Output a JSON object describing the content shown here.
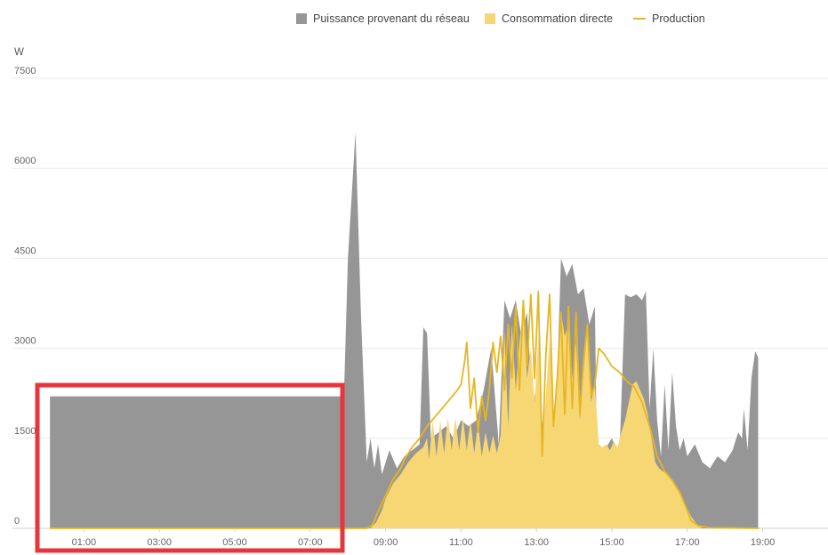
{
  "colors": {
    "grid_power": "#969696",
    "direct_consumption": "#f7d774",
    "production": "#e6b622",
    "highlight_box": "#e8343b"
  },
  "legend": [
    {
      "label": "Puissance provenant du réseau",
      "kind": "box",
      "color": "#969696"
    },
    {
      "label": "Consommation directe",
      "kind": "box",
      "color": "#f7d774"
    },
    {
      "label": "Production",
      "kind": "line",
      "color": "#e6b622"
    }
  ],
  "chart_data": {
    "type": "area",
    "ylabel": "W",
    "ylim": [
      0,
      7500
    ],
    "y_ticks": [
      0,
      1500,
      3000,
      4500,
      6000,
      7500
    ],
    "x_range_hours": [
      0,
      20
    ],
    "x_tick_labels": [
      "01:00",
      "03:00",
      "05:00",
      "07:00",
      "09:00",
      "11:00",
      "13:00",
      "15:00",
      "17:00",
      "19:00"
    ],
    "x_tick_hours": [
      1,
      3,
      5,
      7,
      9,
      11,
      13,
      15,
      17,
      19
    ],
    "grid": true,
    "legend_position": "top",
    "series": [
      {
        "name": "Puissance provenant du réseau",
        "kind": "area",
        "points": [
          [
            0.1,
            2200
          ],
          [
            7.8,
            2200
          ],
          [
            7.85,
            1200
          ],
          [
            8.0,
            4500
          ],
          [
            8.2,
            6600
          ],
          [
            8.35,
            3500
          ],
          [
            8.5,
            1100
          ],
          [
            8.6,
            1500
          ],
          [
            8.7,
            1000
          ],
          [
            8.8,
            1400
          ],
          [
            8.9,
            900
          ],
          [
            9.1,
            1300
          ],
          [
            9.3,
            1000
          ],
          [
            9.5,
            1200
          ],
          [
            9.7,
            1300
          ],
          [
            9.9,
            1400
          ],
          [
            10.0,
            3350
          ],
          [
            10.1,
            3250
          ],
          [
            10.2,
            1500
          ],
          [
            10.4,
            1600
          ],
          [
            10.6,
            1700
          ],
          [
            10.8,
            1500
          ],
          [
            11.0,
            1800
          ],
          [
            11.2,
            1700
          ],
          [
            11.4,
            1800
          ],
          [
            11.6,
            2300
          ],
          [
            11.8,
            3000
          ],
          [
            12.0,
            1400
          ],
          [
            12.15,
            3800
          ],
          [
            12.3,
            3500
          ],
          [
            12.45,
            3800
          ],
          [
            12.6,
            3200
          ],
          [
            12.75,
            3600
          ],
          [
            12.9,
            2000
          ],
          [
            13.05,
            2600
          ],
          [
            13.2,
            1400
          ],
          [
            13.35,
            2800
          ],
          [
            13.5,
            1600
          ],
          [
            13.65,
            4500
          ],
          [
            13.8,
            4200
          ],
          [
            13.95,
            4400
          ],
          [
            14.1,
            3900
          ],
          [
            14.25,
            4000
          ],
          [
            14.4,
            3400
          ],
          [
            14.55,
            3700
          ],
          [
            14.6,
            1400
          ],
          [
            14.8,
            1300
          ],
          [
            15.0,
            1500
          ],
          [
            15.2,
            1200
          ],
          [
            15.35,
            3900
          ],
          [
            15.5,
            3850
          ],
          [
            15.65,
            3900
          ],
          [
            15.8,
            3800
          ],
          [
            15.9,
            3950
          ],
          [
            16.0,
            2000
          ],
          [
            16.1,
            3000
          ],
          [
            16.2,
            1800
          ],
          [
            16.3,
            1200
          ],
          [
            16.4,
            2400
          ],
          [
            16.5,
            1300
          ],
          [
            16.6,
            2600
          ],
          [
            16.7,
            1700
          ],
          [
            16.8,
            1300
          ],
          [
            16.9,
            1500
          ],
          [
            17.0,
            1200
          ],
          [
            17.2,
            1400
          ],
          [
            17.4,
            1100
          ],
          [
            17.6,
            1000
          ],
          [
            17.8,
            1200
          ],
          [
            18.0,
            1100
          ],
          [
            18.2,
            1300
          ],
          [
            18.35,
            1600
          ],
          [
            18.45,
            1500
          ],
          [
            18.5,
            2000
          ],
          [
            18.6,
            1300
          ],
          [
            18.7,
            2500
          ],
          [
            18.8,
            2950
          ],
          [
            18.88,
            2850
          ]
        ]
      },
      {
        "name": "Consommation directe",
        "kind": "area",
        "points": [
          [
            8.6,
            0
          ],
          [
            8.75,
            100
          ],
          [
            8.9,
            300
          ],
          [
            9.0,
            500
          ],
          [
            9.2,
            750
          ],
          [
            9.4,
            900
          ],
          [
            9.5,
            1000
          ],
          [
            9.6,
            1100
          ],
          [
            9.8,
            1250
          ],
          [
            9.9,
            1300
          ],
          [
            10.0,
            1350
          ],
          [
            10.1,
            1500
          ],
          [
            10.15,
            1150
          ],
          [
            10.25,
            1800
          ],
          [
            10.35,
            1200
          ],
          [
            10.45,
            1800
          ],
          [
            10.55,
            1250
          ],
          [
            10.65,
            1850
          ],
          [
            10.75,
            1300
          ],
          [
            10.85,
            1850
          ],
          [
            10.95,
            1300
          ],
          [
            11.05,
            1850
          ],
          [
            11.15,
            1300
          ],
          [
            11.25,
            1800
          ],
          [
            11.35,
            1250
          ],
          [
            11.45,
            1750
          ],
          [
            11.55,
            1200
          ],
          [
            11.65,
            1600
          ],
          [
            11.75,
            1250
          ],
          [
            11.85,
            1550
          ],
          [
            11.95,
            1250
          ],
          [
            12.05,
            1550
          ],
          [
            12.15,
            3300
          ],
          [
            12.25,
            1700
          ],
          [
            12.35,
            3400
          ],
          [
            12.45,
            2300
          ],
          [
            12.55,
            3100
          ],
          [
            12.65,
            3700
          ],
          [
            12.75,
            2500
          ],
          [
            12.85,
            3000
          ],
          [
            12.95,
            2100
          ],
          [
            13.05,
            3200
          ],
          [
            13.15,
            1400
          ],
          [
            13.25,
            2200
          ],
          [
            13.35,
            3200
          ],
          [
            13.45,
            1900
          ],
          [
            13.55,
            2500
          ],
          [
            13.65,
            3600
          ],
          [
            13.75,
            3200
          ],
          [
            13.85,
            3400
          ],
          [
            13.95,
            2500
          ],
          [
            14.05,
            3100
          ],
          [
            14.15,
            1800
          ],
          [
            14.25,
            2600
          ],
          [
            14.35,
            3400
          ],
          [
            14.45,
            2100
          ],
          [
            14.55,
            2400
          ],
          [
            14.65,
            1400
          ],
          [
            14.75,
            1350
          ],
          [
            14.85,
            1400
          ],
          [
            14.95,
            1300
          ],
          [
            15.05,
            1450
          ],
          [
            15.15,
            1350
          ],
          [
            15.25,
            1600
          ],
          [
            15.35,
            1800
          ],
          [
            15.45,
            2100
          ],
          [
            15.55,
            2400
          ],
          [
            15.65,
            2450
          ],
          [
            15.75,
            2300
          ],
          [
            15.85,
            2150
          ],
          [
            15.95,
            1900
          ],
          [
            16.05,
            1500
          ],
          [
            16.15,
            1100
          ],
          [
            16.25,
            1000
          ],
          [
            16.35,
            950
          ],
          [
            16.5,
            900
          ],
          [
            16.7,
            700
          ],
          [
            16.9,
            450
          ],
          [
            17.1,
            200
          ],
          [
            17.25,
            70
          ],
          [
            17.4,
            0
          ]
        ]
      },
      {
        "name": "Production",
        "kind": "line",
        "points": [
          [
            0.1,
            0
          ],
          [
            8.5,
            0
          ],
          [
            8.65,
            50
          ],
          [
            8.8,
            280
          ],
          [
            9.0,
            550
          ],
          [
            9.2,
            820
          ],
          [
            9.4,
            1000
          ],
          [
            9.5,
            1150
          ],
          [
            9.7,
            1350
          ],
          [
            9.9,
            1500
          ],
          [
            10.1,
            1700
          ],
          [
            10.3,
            1850
          ],
          [
            10.5,
            2000
          ],
          [
            10.7,
            2150
          ],
          [
            10.9,
            2300
          ],
          [
            11.0,
            2400
          ],
          [
            11.1,
            2800
          ],
          [
            11.15,
            3100
          ],
          [
            11.25,
            2000
          ],
          [
            11.35,
            2500
          ],
          [
            11.45,
            1600
          ],
          [
            11.55,
            2200
          ],
          [
            11.65,
            1800
          ],
          [
            11.75,
            2300
          ],
          [
            11.85,
            3100
          ],
          [
            11.95,
            2600
          ],
          [
            12.05,
            3200
          ],
          [
            12.15,
            2300
          ],
          [
            12.25,
            3400
          ],
          [
            12.35,
            2500
          ],
          [
            12.45,
            3700
          ],
          [
            12.55,
            2300
          ],
          [
            12.65,
            3800
          ],
          [
            12.75,
            2700
          ],
          [
            12.85,
            3900
          ],
          [
            12.95,
            2500
          ],
          [
            13.05,
            3950
          ],
          [
            13.15,
            1200
          ],
          [
            13.25,
            2900
          ],
          [
            13.35,
            3900
          ],
          [
            13.45,
            1700
          ],
          [
            13.55,
            2500
          ],
          [
            13.65,
            3600
          ],
          [
            13.75,
            1900
          ],
          [
            13.85,
            3700
          ],
          [
            13.95,
            2000
          ],
          [
            14.05,
            3600
          ],
          [
            14.15,
            1900
          ],
          [
            14.25,
            2800
          ],
          [
            14.35,
            3400
          ],
          [
            14.45,
            2200
          ],
          [
            14.55,
            2400
          ],
          [
            14.65,
            3000
          ],
          [
            14.8,
            2900
          ],
          [
            15.0,
            2700
          ],
          [
            15.2,
            2600
          ],
          [
            15.4,
            2450
          ],
          [
            15.6,
            2350
          ],
          [
            15.8,
            2100
          ],
          [
            16.0,
            1700
          ],
          [
            16.2,
            1200
          ],
          [
            16.4,
            950
          ],
          [
            16.6,
            800
          ],
          [
            16.8,
            600
          ],
          [
            17.0,
            300
          ],
          [
            17.1,
            130
          ],
          [
            17.3,
            40
          ],
          [
            17.6,
            10
          ],
          [
            18.9,
            0
          ]
        ]
      }
    ]
  }
}
